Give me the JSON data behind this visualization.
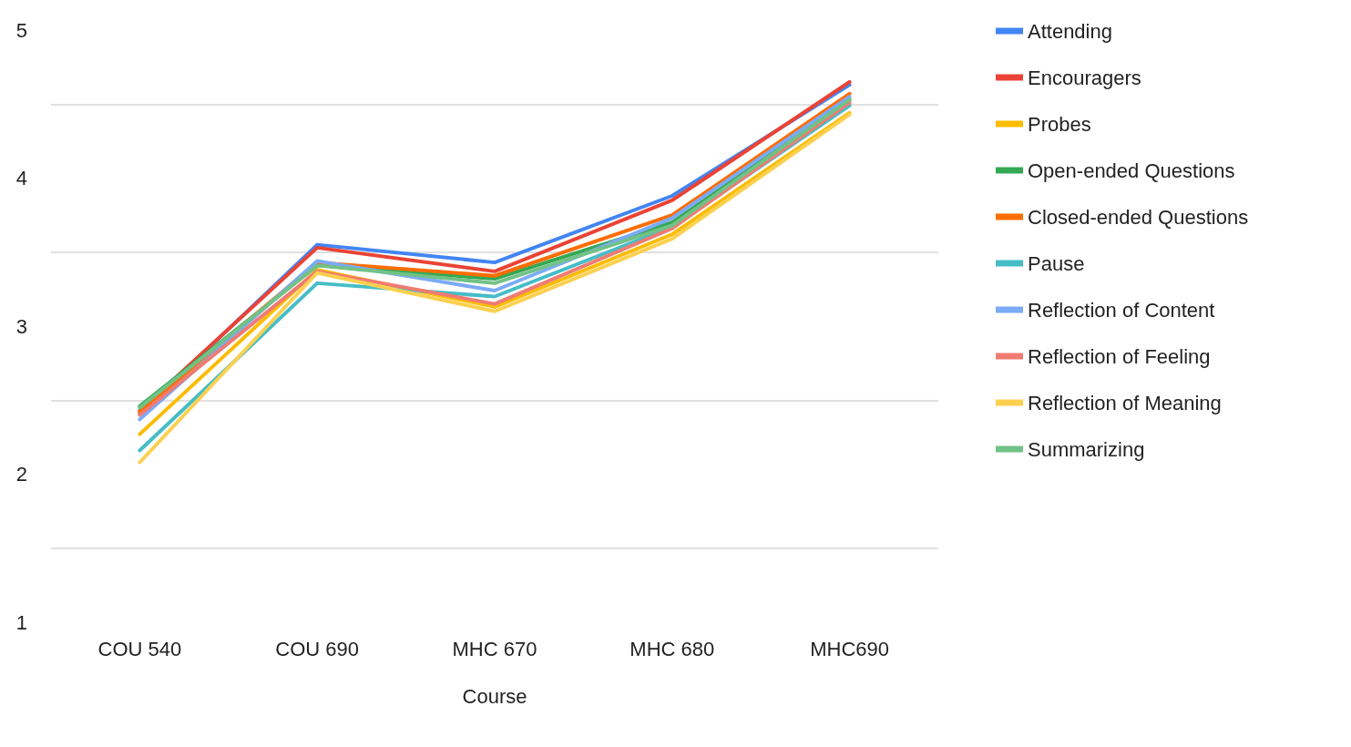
{
  "chart_data": {
    "type": "line",
    "xlabel": "Course",
    "categories": [
      "COU 540",
      "COU 690",
      "MHC 670",
      "MHC 680",
      "MHC690"
    ],
    "ylim": [
      1,
      5
    ],
    "yticks": [
      1,
      {
        "value": 1.5,
        "label": null
      },
      2,
      {
        "value": 2.5,
        "label": null
      },
      3,
      {
        "value": 3.5,
        "label": null
      },
      4,
      {
        "value": 4.5,
        "label": null
      },
      5
    ],
    "grid": "y",
    "legend": "right",
    "marker": "none",
    "line_style": "solid",
    "series": [
      {
        "name": "Attending",
        "color": "#4285f4",
        "values": [
          2.41,
          3.55,
          3.43,
          3.88,
          4.63
        ]
      },
      {
        "name": "Encouragers",
        "color": "#ea4335",
        "values": [
          2.43,
          3.53,
          3.37,
          3.85,
          4.65
        ]
      },
      {
        "name": "Probes",
        "color": "#fbbc04",
        "values": [
          2.27,
          3.38,
          3.13,
          3.62,
          4.44
        ]
      },
      {
        "name": "Open-ended Questions",
        "color": "#34a853",
        "values": [
          2.46,
          3.41,
          3.32,
          3.7,
          4.53
        ]
      },
      {
        "name": "Closed-ended Questions",
        "color": "#ff6d01",
        "values": [
          2.42,
          3.43,
          3.34,
          3.75,
          4.57
        ]
      },
      {
        "name": "Pause",
        "color": "#46bdc6",
        "values": [
          2.16,
          3.29,
          3.2,
          3.67,
          4.49
        ]
      },
      {
        "name": "Reflection of Content",
        "color": "#7baaf7",
        "values": [
          2.37,
          3.44,
          3.24,
          3.73,
          4.55
        ]
      },
      {
        "name": "Reflection of Feeling",
        "color": "#f07b72",
        "values": [
          2.4,
          3.37,
          3.15,
          3.66,
          4.51
        ]
      },
      {
        "name": "Reflection of Meaning",
        "color": "#fcd04f",
        "values": [
          2.08,
          3.36,
          3.1,
          3.59,
          4.43
        ]
      },
      {
        "name": "Summarizing",
        "color": "#71c287",
        "values": [
          2.45,
          3.41,
          3.29,
          3.68,
          4.53
        ]
      }
    ]
  }
}
